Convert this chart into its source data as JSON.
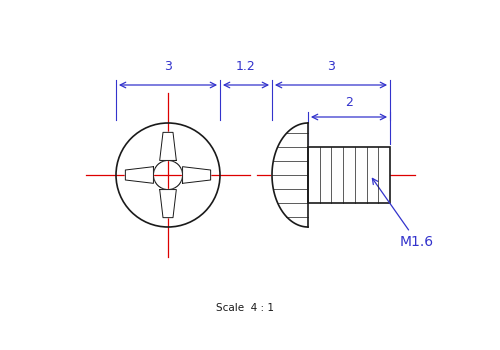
{
  "bg_color": "#ffffff",
  "black": "#1a1a1a",
  "blue": "#3333cc",
  "red": "#dd0000",
  "scale_text": "Scale  4 : 1",
  "thread_label": "M1.6"
}
